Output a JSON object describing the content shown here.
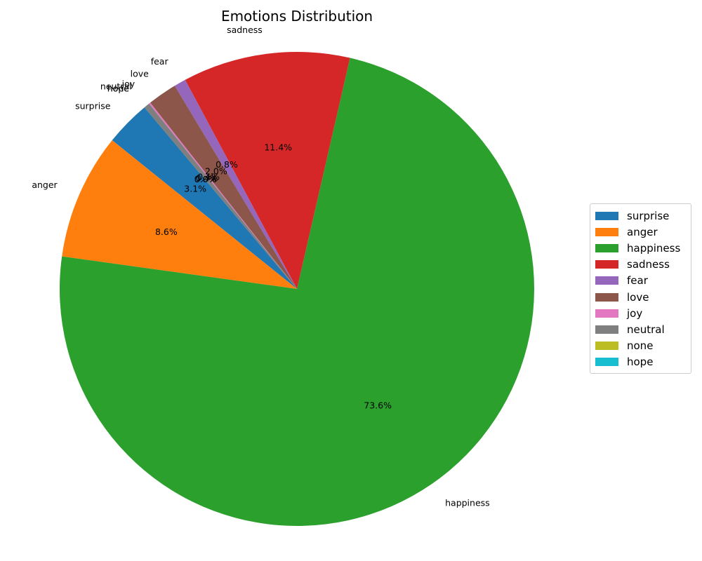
{
  "chart_data": {
    "type": "pie",
    "title": "Emotions Distribution",
    "start_angle_deg": 130,
    "slices": [
      {
        "label": "surprise",
        "value": 3.1,
        "color": "#1f77b4",
        "pct_label": "3.1%"
      },
      {
        "label": "anger",
        "value": 8.6,
        "color": "#ff7f0e",
        "pct_label": "8.6%"
      },
      {
        "label": "happiness",
        "value": 73.6,
        "color": "#2ca02c",
        "pct_label": "73.6%"
      },
      {
        "label": "sadness",
        "value": 11.4,
        "color": "#d62728",
        "pct_label": "11.4%"
      },
      {
        "label": "fear",
        "value": 0.8,
        "color": "#9467bd",
        "pct_label": "0.8%"
      },
      {
        "label": "love",
        "value": 2.0,
        "color": "#8c564b",
        "pct_label": "2.0%"
      },
      {
        "label": "joy",
        "value": 0.1,
        "color": "#e377c2",
        "pct_label": "0.1%"
      },
      {
        "label": "neutral",
        "value": 0.4,
        "color": "#7f7f7f",
        "pct_label": "0.4%"
      },
      {
        "label": "none",
        "value": 0.0,
        "color": "#bcbd22",
        "pct_label": "0.0%"
      },
      {
        "label": "hope",
        "value": 0.0,
        "color": "#17becf",
        "pct_label": "0.0%"
      }
    ],
    "legend": {
      "placement": "right",
      "entries": [
        "surprise",
        "anger",
        "happiness",
        "sadness",
        "fear",
        "love",
        "joy",
        "neutral",
        "none",
        "hope"
      ]
    }
  }
}
